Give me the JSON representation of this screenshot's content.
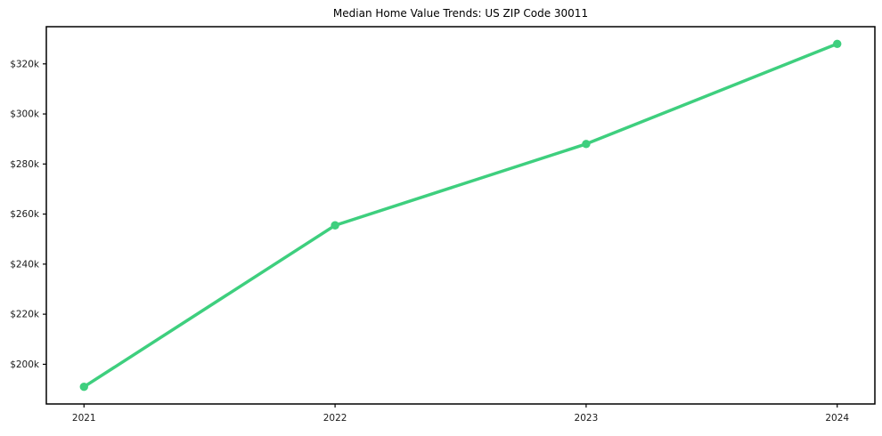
{
  "chart_data": {
    "type": "line",
    "title": "Median Home Value Trends: US ZIP Code 30011",
    "xlabel": "",
    "ylabel": "",
    "x": [
      2021,
      2022,
      2023,
      2024
    ],
    "xtick_labels": [
      "2021",
      "2022",
      "2023",
      "2024"
    ],
    "values": [
      191000,
      255500,
      288000,
      328000
    ],
    "ytick_values": [
      200000,
      220000,
      240000,
      260000,
      280000,
      300000,
      320000
    ],
    "ytick_labels": [
      "$200k",
      "$220k",
      "$240k",
      "$260k",
      "$280k",
      "$300k",
      "$320k"
    ],
    "xlim": [
      2020.85,
      2024.15
    ],
    "ylim": [
      184150,
      334850
    ],
    "grid": false,
    "legend": "none",
    "line_color": "#3ecf7e",
    "marker": "circle",
    "axis_color": "#000000",
    "tick_text_color": "#1a1a1a",
    "background": "#ffffff"
  }
}
